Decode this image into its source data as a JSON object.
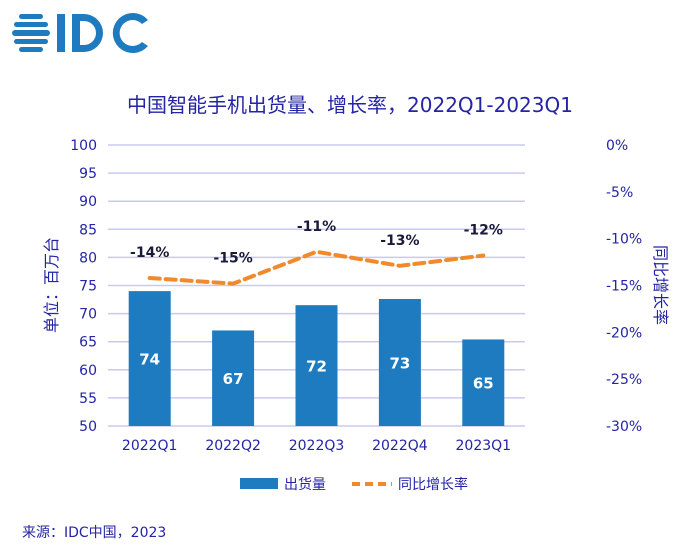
{
  "logo_text": "IDC",
  "title": "中国智能手机出货量、增长率，2022Q1-2023Q1",
  "source": "来源：IDC中国，2023",
  "colors": {
    "bar": "#1f7bbf",
    "line": "#f08a2c",
    "text": "#2424a6",
    "grid": "#c9c9f2",
    "label": "#1a1a3a"
  },
  "chart_data": {
    "type": "bar+line",
    "title": "中国智能手机出货量、增长率，2022Q1-2023Q1",
    "categories": [
      "2022Q1",
      "2022Q2",
      "2022Q3",
      "2022Q4",
      "2023Q1"
    ],
    "series": [
      {
        "name": "出货量",
        "type": "bar",
        "axis": "left",
        "values": [
          74.0,
          67.0,
          71.5,
          72.6,
          65.4
        ],
        "labels": [
          "74",
          "67",
          "72",
          "73",
          "65"
        ]
      },
      {
        "name": "同比增长率",
        "type": "line",
        "style": "dashed",
        "axis": "right",
        "values": [
          -14.2,
          -14.8,
          -11.4,
          -12.9,
          -11.8
        ],
        "labels": [
          "-14%",
          "-15%",
          "-11%",
          "-13%",
          "-12%"
        ]
      }
    ],
    "ylabel": "单位：百万台",
    "y2label": "同比增长率",
    "ylim": [
      50,
      100
    ],
    "y2lim": [
      -30,
      0
    ],
    "yticks": [
      "50",
      "55",
      "60",
      "65",
      "70",
      "75",
      "80",
      "85",
      "90",
      "95",
      "100"
    ],
    "y2ticks": [
      "-30%",
      "-25%",
      "-20%",
      "-15%",
      "-10%",
      "-5%",
      "0%"
    ],
    "grid": true,
    "legend": "bottom"
  }
}
